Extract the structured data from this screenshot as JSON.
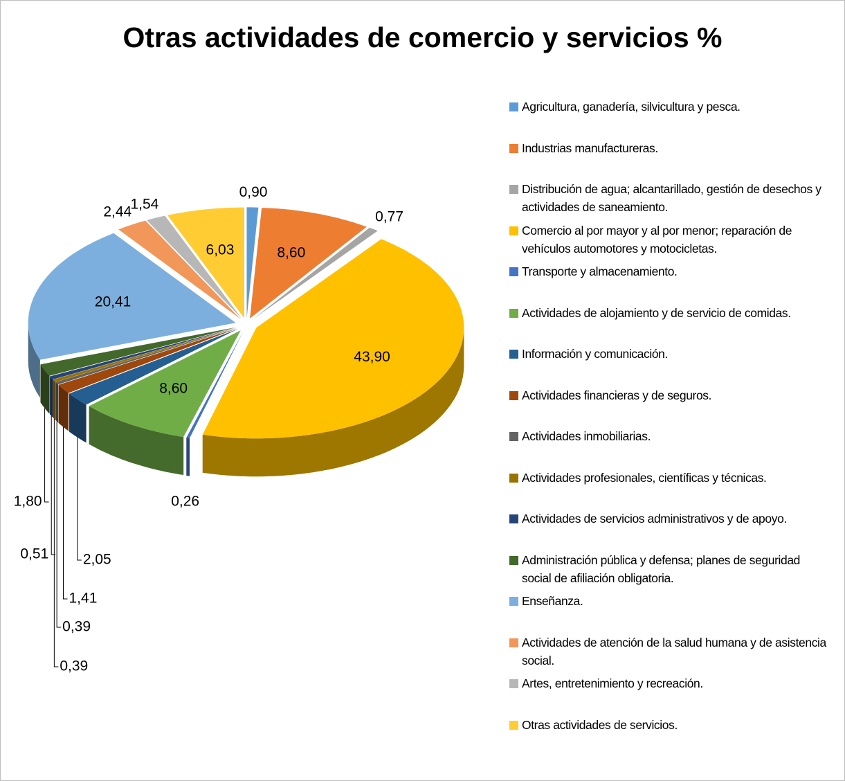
{
  "chart_data": {
    "type": "pie3d",
    "title": "Otras actividades de comercio y servicios %",
    "categories": [
      "Agricultura, ganadería,  silvicultura y pesca.",
      "Industrias manufactureras.",
      "Distribución de agua; alcantarillado, gestión de desechos y actividades de saneamiento.",
      "Comercio al por mayor y al por menor; reparación de vehículos automotores y motocicletas.",
      "Transporte y almacenamiento.",
      "Actividades de alojamiento y de servicio de comidas.",
      "Información y comunicación.",
      "Actividades financieras y de seguros.",
      "Actividades  inmobiliarias.",
      "Actividades profesionales, científicas y técnicas.",
      "Actividades de servicios administrativos y de apoyo.",
      "Administración pública y defensa; planes de seguridad social de afiliación obligatoria.",
      "Enseñanza.",
      "Actividades de atención de la salud humana y de asistencia social.",
      "Artes, entretenimiento y recreación.",
      "Otras actividades de servicios."
    ],
    "values": [
      0.9,
      8.6,
      0.77,
      43.9,
      0.26,
      8.6,
      2.05,
      1.41,
      0.39,
      0.39,
      0.51,
      1.8,
      20.41,
      2.44,
      1.54,
      6.03
    ],
    "value_labels": [
      "0,90",
      "8,60",
      "0,77",
      "43,90",
      "0,26",
      "8,60",
      "2,05",
      "1,41",
      "0,39",
      "0,39",
      "0,51",
      "1,80",
      "20,41",
      "2,44",
      "1,54",
      "6,03"
    ],
    "colors": [
      "#5b9bd5",
      "#ed7d31",
      "#a5a5a5",
      "#ffc000",
      "#4472c4",
      "#70ad47",
      "#255e91",
      "#9e480e",
      "#636363",
      "#997300",
      "#264478",
      "#43682b",
      "#7cafdd",
      "#f1975a",
      "#b7b7b7",
      "#ffcd33"
    ]
  }
}
